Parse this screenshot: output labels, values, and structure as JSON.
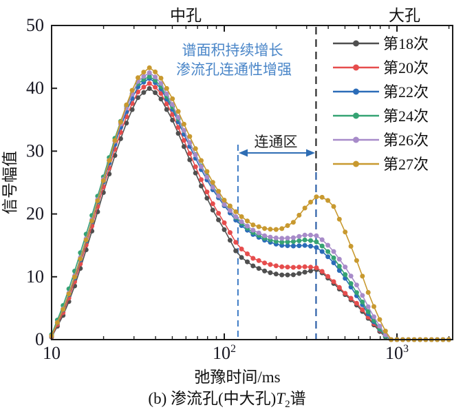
{
  "figure": {
    "region_labels": {
      "medium": "中孔",
      "large": "大孔"
    },
    "annotation": {
      "line1": "谱面积持续增长",
      "line2": "渗流孔连通性增强",
      "color": "#4a86c8"
    },
    "connected_zone_label": "连通区",
    "xlabel": "弛豫时间/ms",
    "ylabel": "信号幅值",
    "caption": {
      "prefix": "(b) 渗流孔(中大孔)",
      "variable": "T",
      "subscript": "2",
      "suffix": "谱"
    }
  },
  "chart_data": {
    "type": "line",
    "title": "(b) 渗流孔(中大孔)T2谱",
    "xlabel": "弛豫时间/ms",
    "ylabel": "信号幅值",
    "xscale": "log",
    "xlim": [
      10,
      2100
    ],
    "ylim": [
      0,
      50
    ],
    "grid": false,
    "legend_position": "top-right-inside",
    "yticks": [
      0,
      10,
      20,
      30,
      40,
      50
    ],
    "xticks": [
      {
        "value": 10,
        "base": "10",
        "exp": ""
      },
      {
        "value": 100,
        "base": "10",
        "exp": "2"
      },
      {
        "value": 1000,
        "base": "10",
        "exp": "3"
      }
    ],
    "x_minor_ticks": [
      20,
      30,
      40,
      50,
      60,
      70,
      80,
      90,
      200,
      300,
      400,
      500,
      600,
      700,
      800,
      900,
      2000
    ],
    "dashed_lines": {
      "zone_left_ms": 120,
      "zone_right_ms": 340,
      "left_color": "#3b79c4",
      "right_top_color": "#2b2b2b",
      "right_bottom_color": "#2d5fa7"
    },
    "zone_arrow_color": "#2e6db4",
    "t_ms": [
      10,
      12,
      14,
      17,
      20,
      24,
      28,
      32,
      37,
      42,
      50,
      60,
      72,
      85,
      100,
      120,
      145,
      175,
      210,
      250,
      300,
      350,
      420,
      500,
      600,
      700,
      800,
      860,
      920,
      1000,
      1200,
      1500,
      2000
    ],
    "series": [
      {
        "name": "第18次",
        "color": "#4f4f4f",
        "values": [
          0.4,
          4.5,
          9.5,
          17.0,
          23.5,
          30.5,
          35.5,
          38.8,
          40.0,
          38.8,
          35.0,
          30.0,
          25.0,
          20.8,
          17.5,
          13.5,
          11.8,
          10.8,
          10.3,
          10.3,
          10.8,
          11.2,
          9.2,
          7.2,
          5.2,
          3.0,
          1.2,
          0.4,
          0,
          0,
          0,
          0,
          0
        ]
      },
      {
        "name": "第20次",
        "color": "#e64d4d",
        "values": [
          0.5,
          5.0,
          10.2,
          17.8,
          24.4,
          31.5,
          36.5,
          39.7,
          40.8,
          39.7,
          35.9,
          31.0,
          26.0,
          21.8,
          18.6,
          14.9,
          13.0,
          12.1,
          11.6,
          11.5,
          11.6,
          11.4,
          9.5,
          7.4,
          5.5,
          3.2,
          1.4,
          0.5,
          0,
          0,
          0,
          0,
          0
        ]
      },
      {
        "name": "第22次",
        "color": "#2b6cb8",
        "values": [
          0.6,
          5.5,
          10.8,
          18.5,
          25.2,
          32.3,
          37.3,
          40.5,
          41.6,
          40.4,
          36.7,
          32.0,
          27.5,
          24.0,
          21.3,
          18.6,
          16.8,
          15.7,
          15.0,
          14.9,
          15.0,
          14.6,
          12.6,
          9.8,
          6.5,
          3.6,
          1.5,
          0.5,
          0,
          0,
          0,
          0,
          0
        ]
      },
      {
        "name": "第24次",
        "color": "#35a373",
        "values": [
          0.8,
          6.3,
          12.0,
          19.5,
          26.0,
          33.3,
          38.2,
          41.0,
          41.9,
          40.8,
          37.1,
          32.6,
          28.1,
          24.6,
          21.7,
          19.0,
          17.1,
          16.0,
          15.5,
          15.6,
          15.9,
          15.5,
          13.4,
          10.4,
          7.0,
          3.9,
          1.6,
          0.5,
          0,
          0,
          0,
          0,
          0
        ]
      },
      {
        "name": "第26次",
        "color": "#a78bc9",
        "values": [
          0.6,
          5.7,
          11.2,
          18.8,
          25.6,
          32.8,
          37.9,
          41.4,
          42.5,
          41.3,
          37.5,
          32.6,
          28.0,
          24.4,
          21.5,
          19.2,
          17.5,
          16.4,
          16.1,
          16.2,
          16.7,
          16.5,
          14.4,
          11.6,
          8.2,
          4.6,
          2.0,
          0.7,
          0,
          0,
          0,
          0,
          0
        ]
      },
      {
        "name": "第27次",
        "color": "#c8992f",
        "values": [
          0.6,
          5.6,
          11.0,
          18.6,
          25.4,
          33.0,
          38.5,
          42.0,
          43.3,
          42.1,
          38.4,
          33.6,
          29.0,
          25.2,
          22.2,
          20.0,
          18.3,
          17.6,
          17.5,
          18.6,
          21.3,
          23.0,
          21.8,
          17.2,
          11.8,
          6.6,
          3.0,
          1.3,
          0,
          0,
          0,
          0,
          0
        ]
      }
    ]
  }
}
